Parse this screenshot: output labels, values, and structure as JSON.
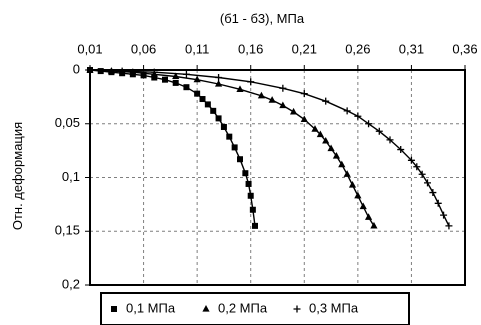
{
  "chart_data": {
    "type": "line",
    "title": "",
    "xlabel": "(б1 - б3), МПа",
    "ylabel": "Отн. деформация",
    "x_axis_position": "top",
    "y_axis_inverted": true,
    "xlim": [
      0.01,
      0.36
    ],
    "ylim": [
      0,
      0.2
    ],
    "x_ticks": [
      0.01,
      0.06,
      0.11,
      0.16,
      0.21,
      0.26,
      0.31,
      0.36
    ],
    "x_tick_labels": [
      "0,01",
      "0,06",
      "0,11",
      "0,16",
      "0,21",
      "0,26",
      "0,31",
      "0,36"
    ],
    "y_ticks": [
      0,
      0.05,
      0.1,
      0.15,
      0.2
    ],
    "y_tick_labels": [
      "0",
      "0,05",
      "0,1",
      "0,15",
      "0,2"
    ],
    "grid": true,
    "legend_position": "bottom",
    "series": [
      {
        "name": "0,1 МПа",
        "marker": "square",
        "x": [
          0.01,
          0.02,
          0.03,
          0.04,
          0.05,
          0.06,
          0.07,
          0.08,
          0.09,
          0.1,
          0.11,
          0.115,
          0.12,
          0.125,
          0.13,
          0.135,
          0.14,
          0.145,
          0.15,
          0.155,
          0.158,
          0.16,
          0.162,
          0.164
        ],
        "y": [
          0.0,
          0.001,
          0.002,
          0.003,
          0.004,
          0.005,
          0.007,
          0.009,
          0.012,
          0.016,
          0.022,
          0.027,
          0.032,
          0.038,
          0.045,
          0.053,
          0.062,
          0.072,
          0.083,
          0.096,
          0.106,
          0.117,
          0.13,
          0.145
        ]
      },
      {
        "name": "0,2 МПа",
        "marker": "triangle",
        "x": [
          0.01,
          0.03,
          0.05,
          0.07,
          0.09,
          0.11,
          0.13,
          0.15,
          0.17,
          0.18,
          0.19,
          0.2,
          0.21,
          0.22,
          0.225,
          0.23,
          0.235,
          0.24,
          0.245,
          0.25,
          0.255,
          0.26,
          0.265,
          0.27,
          0.275
        ],
        "y": [
          0.0,
          0.001,
          0.002,
          0.004,
          0.006,
          0.009,
          0.013,
          0.018,
          0.024,
          0.028,
          0.033,
          0.039,
          0.046,
          0.055,
          0.06,
          0.066,
          0.073,
          0.08,
          0.088,
          0.097,
          0.107,
          0.117,
          0.127,
          0.137,
          0.145
        ]
      },
      {
        "name": "0,3 МПа",
        "marker": "plus",
        "x": [
          0.01,
          0.04,
          0.07,
          0.1,
          0.13,
          0.16,
          0.19,
          0.21,
          0.23,
          0.25,
          0.26,
          0.27,
          0.28,
          0.29,
          0.3,
          0.31,
          0.315,
          0.32,
          0.325,
          0.33,
          0.335,
          0.34,
          0.345
        ],
        "y": [
          0.0,
          0.001,
          0.002,
          0.004,
          0.007,
          0.011,
          0.017,
          0.022,
          0.029,
          0.038,
          0.043,
          0.05,
          0.057,
          0.065,
          0.074,
          0.084,
          0.09,
          0.097,
          0.105,
          0.114,
          0.124,
          0.135,
          0.145
        ]
      }
    ]
  }
}
